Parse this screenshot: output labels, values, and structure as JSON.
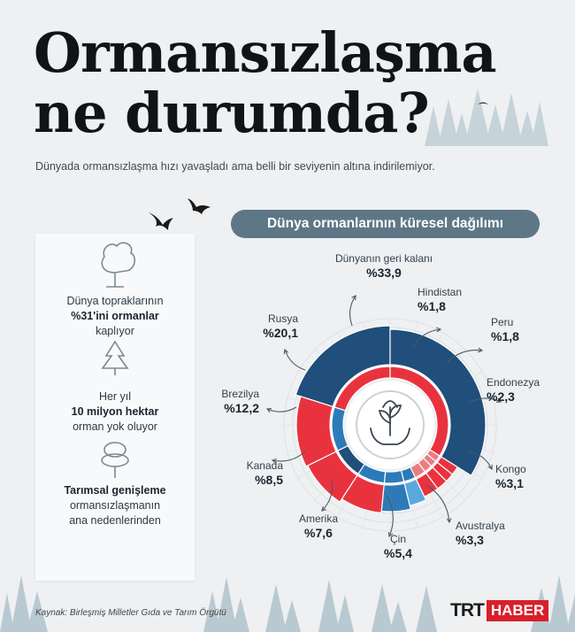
{
  "title_line1": "Ormansızlaşma",
  "title_line2": "ne durumda?",
  "subtitle": "Dünyada ormansızlaşma hızı yavaşladı ama belli bir seviyenin altına indirilemiyor.",
  "facts": [
    {
      "icon": "tree-icon",
      "line1": "Dünya topraklarının",
      "bold": "%31'ini ormanlar",
      "line3": "kaplıyor"
    },
    {
      "icon": "pine-tree-icon",
      "line1": "Her yıl",
      "bold": "10 milyon hektar",
      "line3": "orman yok oluyor"
    },
    {
      "icon": "tree-icon",
      "bold": "Tarımsal genişleme",
      "line2": "ormansızlaşmanın",
      "line3": "ana nedenlerinden"
    }
  ],
  "chart_title": "Dünya ormanlarının küresel dağılımı",
  "chart_data": {
    "type": "pie",
    "title": "Dünya ormanlarının küresel dağılımı",
    "unit": "%",
    "center_icon": "hands-holding-tree-icon",
    "slices": [
      {
        "label": "Rusya",
        "value": 20.1,
        "display": "%20,1"
      },
      {
        "label": "Dünyanın geri kalanı",
        "value": 33.9,
        "display": "%33,9"
      },
      {
        "label": "Hindistan",
        "value": 1.8,
        "display": "%1,8"
      },
      {
        "label": "Peru",
        "value": 1.8,
        "display": "%1,8"
      },
      {
        "label": "Endonezya",
        "value": 2.3,
        "display": "%2,3"
      },
      {
        "label": "Kongo",
        "value": 3.1,
        "display": "%3,1"
      },
      {
        "label": "Avustralya",
        "value": 3.3,
        "display": "%3,3"
      },
      {
        "label": "Çin",
        "value": 5.4,
        "display": "%5,4"
      },
      {
        "label": "Amerika",
        "value": 7.6,
        "display": "%7,6"
      },
      {
        "label": "Kanada",
        "value": 8.5,
        "display": "%8,5"
      },
      {
        "label": "Brezilya",
        "value": 12.2,
        "display": "%12,2"
      }
    ],
    "colors": {
      "red": "#e8333f",
      "light_red": "#ec7c82",
      "dark_blue": "#1f4f7a",
      "blue": "#2c7bb8",
      "light_blue": "#5aa9dd",
      "grey": "#7f98a6"
    }
  },
  "source": "Kaynak: Birleşmiş Milletler Gıda ve Tarım Örgütü",
  "logo": {
    "trt": "TRT",
    "haber": "HABER"
  }
}
